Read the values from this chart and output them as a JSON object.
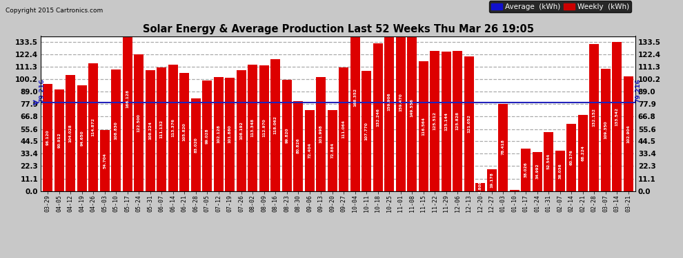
{
  "title": "Solar Energy & Average Production Last 52 Weeks Thu Mar 26 19:05",
  "copyright": "Copyright 2015 Cartronics.com",
  "average_line": 79.216,
  "bar_color": "#DD0000",
  "average_color": "#2222BB",
  "background_color": "#C8C8C8",
  "plot_bg_color": "#FFFFFF",
  "grid_color": "#AAAAAA",
  "yticks": [
    0.0,
    11.1,
    22.3,
    33.4,
    44.5,
    55.6,
    66.8,
    77.9,
    89.0,
    100.2,
    111.3,
    122.4,
    133.5
  ],
  "categories": [
    "03-29",
    "04-05",
    "04-12",
    "04-19",
    "04-26",
    "05-03",
    "05-10",
    "05-17",
    "05-24",
    "05-31",
    "06-07",
    "06-14",
    "06-21",
    "06-28",
    "07-05",
    "07-12",
    "07-19",
    "07-26",
    "08-02",
    "08-09",
    "08-16",
    "08-23",
    "08-30",
    "09-06",
    "09-13",
    "09-20",
    "09-27",
    "10-04",
    "10-11",
    "10-18",
    "10-25",
    "11-01",
    "11-08",
    "11-15",
    "11-22",
    "11-29",
    "12-06",
    "12-13",
    "12-20",
    "12-27",
    "01-03",
    "01-10",
    "01-17",
    "01-24",
    "01-31",
    "02-07",
    "02-14",
    "02-21",
    "02-28",
    "03-07",
    "03-14",
    "03-21"
  ],
  "values": [
    96.12,
    90.912,
    104.028,
    94.65,
    114.872,
    54.704,
    108.83,
    166.128,
    122.5,
    108.224,
    111.132,
    113.376,
    105.82,
    83.02,
    99.028,
    102.128,
    101.88,
    108.192,
    113.348,
    112.97,
    118.062,
    99.82,
    80.826,
    72.404,
    101.998,
    72.884,
    111.064,
    168.352,
    107.77,
    132.246,
    159.906,
    159.47,
    149.556,
    116.564,
    125.512,
    125.144,
    125.828,
    121.052,
    6.808,
    19.178,
    78.418,
    1.03,
    38.026,
    34.992,
    52.544,
    36.036,
    60.176,
    68.224,
    132.152,
    109.35,
    133.542,
    102.904
  ],
  "legend_avg_color": "#0000EE",
  "legend_weekly_color": "#CC0000"
}
